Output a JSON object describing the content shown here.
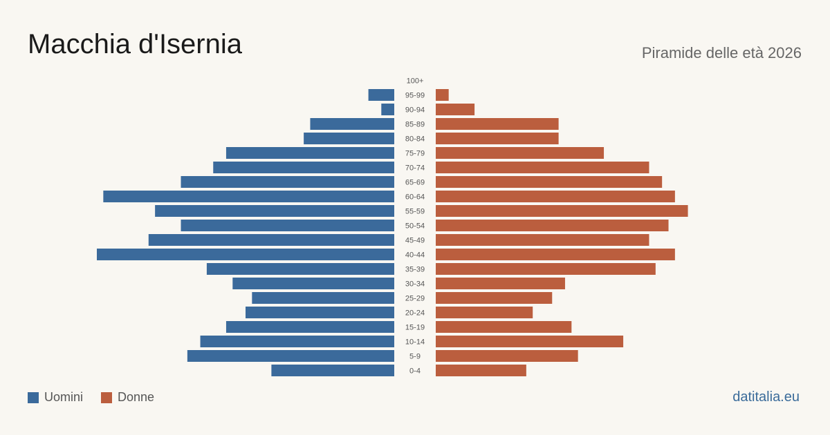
{
  "header": {
    "title": "Macchia d'Isernia",
    "subtitle": "Piramide delle età 2026"
  },
  "legend": {
    "male_label": "Uomini",
    "female_label": "Donne"
  },
  "footer": {
    "source": "datitalia.eu"
  },
  "colors": {
    "male": "#3b6a9b",
    "female": "#bb5e3e",
    "background": "#f9f7f2"
  },
  "chart_data": {
    "type": "bar",
    "orientation": "horizontal-diverging",
    "categories": [
      "100+",
      "95-99",
      "90-94",
      "85-89",
      "80-84",
      "75-79",
      "70-74",
      "65-69",
      "60-64",
      "55-59",
      "50-54",
      "45-49",
      "40-44",
      "35-39",
      "30-34",
      "25-29",
      "20-24",
      "15-19",
      "10-14",
      "5-9",
      "0-4"
    ],
    "series": [
      {
        "name": "Uomini",
        "values": [
          0,
          4,
          2,
          13,
          14,
          26,
          28,
          33,
          45,
          37,
          33,
          38,
          46,
          29,
          25,
          22,
          23,
          26,
          30,
          32,
          19
        ]
      },
      {
        "name": "Donne",
        "values": [
          0,
          2,
          6,
          19,
          19,
          26,
          33,
          35,
          37,
          39,
          36,
          33,
          37,
          34,
          20,
          18,
          15,
          21,
          29,
          22,
          14
        ]
      }
    ],
    "grid": false,
    "legend_position": "bottom-left"
  }
}
